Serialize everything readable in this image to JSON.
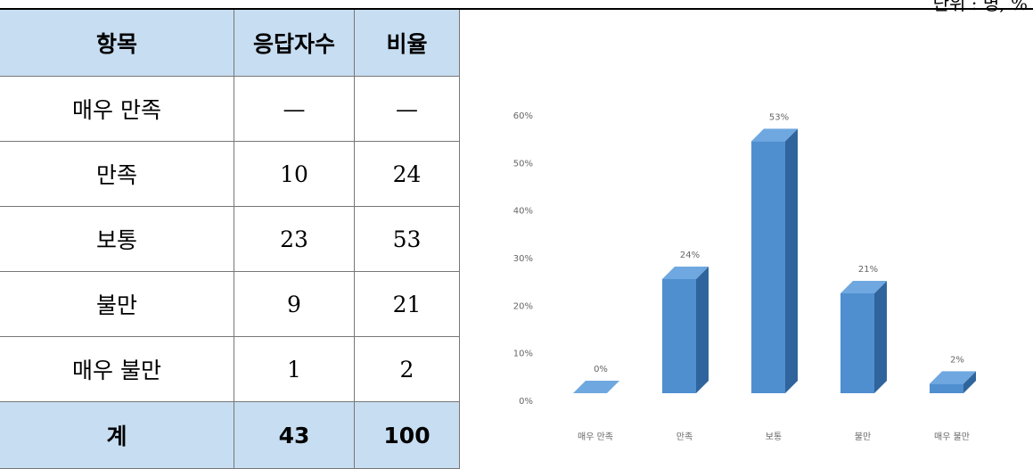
{
  "unit": "단위 : 명, %",
  "table": {
    "header": [
      "항목",
      "응답자수",
      "비율"
    ],
    "rows": [
      [
        "매우 만족",
        "—",
        "—"
      ],
      [
        "만족",
        "10",
        "24"
      ],
      [
        "보통",
        "23",
        "53"
      ],
      [
        "불만",
        "9",
        "21"
      ],
      [
        "매우 불만",
        "1",
        "2"
      ]
    ],
    "total": [
      "계",
      "43",
      "100"
    ]
  },
  "chart_data": {
    "type": "bar3d",
    "categories": [
      "매우 만족",
      "만족",
      "보통",
      "불만",
      "매우 불만"
    ],
    "values": [
      0,
      24,
      53,
      21,
      2
    ],
    "value_labels": [
      "0%",
      "24%",
      "53%",
      "21%",
      "2%"
    ],
    "color": "#4f8fd0",
    "ylim": [
      0,
      60
    ],
    "yticks": [
      {
        "value": 0,
        "label": "0%"
      },
      {
        "value": 10,
        "label": "10%"
      },
      {
        "value": 20,
        "label": "20%"
      },
      {
        "value": 30,
        "label": "30%"
      },
      {
        "value": 40,
        "label": "40%"
      },
      {
        "value": 50,
        "label": "50%"
      },
      {
        "value": 60,
        "label": "60%"
      }
    ]
  }
}
